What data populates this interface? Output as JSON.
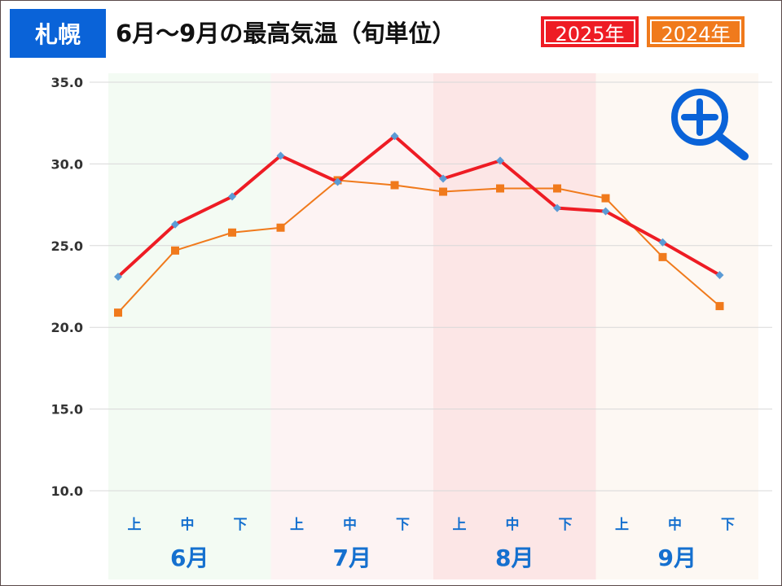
{
  "header": {
    "city": "札幌",
    "title": "6月～9月の最高気温（旬単位）",
    "legend_2025": "2025年",
    "legend_2024": "2024年"
  },
  "icons": {
    "zoom": "zoom-in-icon"
  },
  "colors": {
    "city_badge": "#0a63d8",
    "series_2025": "#ee1c24",
    "series_2025_marker": "#5b9bd5",
    "series_2024": "#f07a1c",
    "label_blue": "#1570cf",
    "band_june": "#f3fbf3",
    "band_july": "#fdf3f3",
    "band_august": "#fce6e6",
    "band_september": "#fdf8f3"
  },
  "chart_data": {
    "type": "line",
    "title": "6月～9月の最高気温（旬単位）",
    "xlabel": "",
    "ylabel": "",
    "ylim": [
      10.0,
      35.0
    ],
    "yticks": [
      "35.0",
      "30.0",
      "25.0",
      "20.0",
      "15.0",
      "10.0"
    ],
    "grid": true,
    "legend": "top-right",
    "months": [
      "6月",
      "7月",
      "8月",
      "9月"
    ],
    "categories": [
      "上",
      "中",
      "下",
      "上",
      "中",
      "下",
      "上",
      "中",
      "下",
      "上",
      "中",
      "下"
    ],
    "series": [
      {
        "name": "2025年",
        "values": [
          23.1,
          26.3,
          28.0,
          30.5,
          28.9,
          31.7,
          29.1,
          30.2,
          27.3,
          27.1,
          25.2,
          23.2
        ]
      },
      {
        "name": "2024年",
        "values": [
          20.9,
          24.7,
          25.8,
          26.1,
          29.0,
          28.7,
          28.3,
          28.5,
          28.5,
          27.9,
          24.3,
          21.3
        ]
      }
    ]
  }
}
